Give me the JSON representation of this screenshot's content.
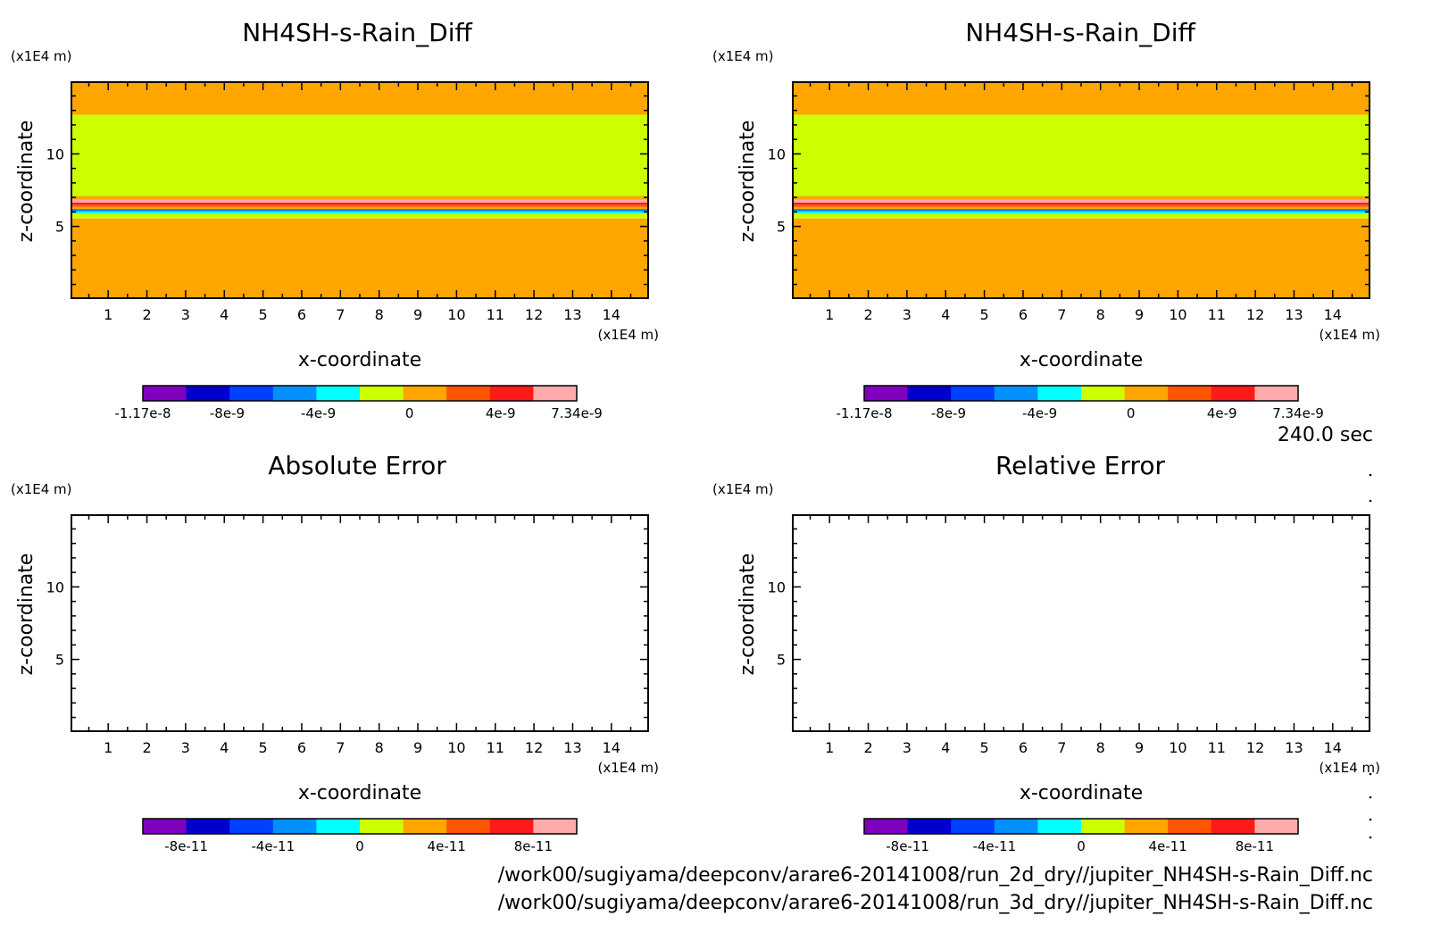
{
  "figure": {
    "time_label": "240.0 sec",
    "paths": [
      "/work00/sugiyama/deepconv/arare6-20141008/run_2d_dry//jupiter_NH4SH-s-Rain_Diff.nc",
      "/work00/sugiyama/deepconv/arare6-20141008/run_3d_dry//jupiter_NH4SH-s-Rain_Diff.nc"
    ],
    "panels": [
      {
        "title": "NH4SH-s-Rain_Diff"
      },
      {
        "title": "NH4SH-s-Rain_Diff"
      },
      {
        "title": "Absolute Error"
      },
      {
        "title": "Relative Error"
      }
    ]
  },
  "chart_data": [
    {
      "type": "heatmap",
      "title": "NH4SH-s-Rain_Diff",
      "xlabel": "x-coordinate",
      "ylabel": "z-coordinate",
      "x_unit": "(x1E4 m)",
      "y_unit": "(x1E4 m)",
      "xlim": [
        0.05,
        14.95
      ],
      "ylim": [
        0.05,
        14.95
      ],
      "x_ticks": [
        1,
        2,
        3,
        4,
        5,
        6,
        7,
        8,
        9,
        10,
        11,
        12,
        13,
        14
      ],
      "y_ticks": [
        5,
        10
      ],
      "bands": [
        {
          "z0": 0.05,
          "z1": 5.55,
          "color": "#ffa500"
        },
        {
          "z0": 5.55,
          "z1": 5.9,
          "color": "#ccff00"
        },
        {
          "z0": 5.9,
          "z1": 6.05,
          "color": "#00ffff"
        },
        {
          "z0": 6.05,
          "z1": 6.2,
          "color": "#0080ff"
        },
        {
          "z0": 6.2,
          "z1": 6.35,
          "color": "#ffa500"
        },
        {
          "z0": 6.35,
          "z1": 6.5,
          "color": "#ff5500"
        },
        {
          "z0": 6.5,
          "z1": 6.65,
          "color": "#ff1a1a"
        },
        {
          "z0": 6.65,
          "z1": 6.85,
          "color": "#ffaaaa"
        },
        {
          "z0": 6.85,
          "z1": 7.1,
          "color": "#ffa500"
        },
        {
          "z0": 7.1,
          "z1": 12.7,
          "color": "#ccff00"
        },
        {
          "z0": 12.7,
          "z1": 14.95,
          "color": "#ffa500"
        }
      ],
      "colorbar": {
        "colors": [
          "#8000c0",
          "#0000cc",
          "#0040ff",
          "#0090ff",
          "#00ffff",
          "#ccff00",
          "#ffa500",
          "#ff5500",
          "#ff1a1a",
          "#ffaaaa"
        ],
        "labels": [
          "-1.17e-8",
          "-8e-9",
          "-4e-9",
          "0",
          "4e-9",
          "7.34e-9"
        ],
        "label_values": [
          -1.17e-08,
          -8e-09,
          -4e-09,
          0,
          4e-09,
          7.34e-09
        ],
        "range": [
          -1.17e-08,
          7.34e-09
        ]
      }
    },
    {
      "type": "heatmap",
      "title": "NH4SH-s-Rain_Diff",
      "xlabel": "x-coordinate",
      "ylabel": "z-coordinate",
      "x_unit": "(x1E4 m)",
      "y_unit": "(x1E4 m)",
      "xlim": [
        0.05,
        14.95
      ],
      "ylim": [
        0.05,
        14.95
      ],
      "x_ticks": [
        1,
        2,
        3,
        4,
        5,
        6,
        7,
        8,
        9,
        10,
        11,
        12,
        13,
        14
      ],
      "y_ticks": [
        5,
        10
      ],
      "bands": [
        {
          "z0": 0.05,
          "z1": 5.55,
          "color": "#ffa500"
        },
        {
          "z0": 5.55,
          "z1": 5.9,
          "color": "#ccff00"
        },
        {
          "z0": 5.9,
          "z1": 6.05,
          "color": "#00ffff"
        },
        {
          "z0": 6.05,
          "z1": 6.2,
          "color": "#0080ff"
        },
        {
          "z0": 6.2,
          "z1": 6.35,
          "color": "#ffa500"
        },
        {
          "z0": 6.35,
          "z1": 6.5,
          "color": "#ff5500"
        },
        {
          "z0": 6.5,
          "z1": 6.65,
          "color": "#ff1a1a"
        },
        {
          "z0": 6.65,
          "z1": 6.85,
          "color": "#ffaaaa"
        },
        {
          "z0": 6.85,
          "z1": 7.1,
          "color": "#ffa500"
        },
        {
          "z0": 7.1,
          "z1": 12.7,
          "color": "#ccff00"
        },
        {
          "z0": 12.7,
          "z1": 14.95,
          "color": "#ffa500"
        }
      ],
      "colorbar": {
        "colors": [
          "#8000c0",
          "#0000cc",
          "#0040ff",
          "#0090ff",
          "#00ffff",
          "#ccff00",
          "#ffa500",
          "#ff5500",
          "#ff1a1a",
          "#ffaaaa"
        ],
        "labels": [
          "-1.17e-8",
          "-8e-9",
          "-4e-9",
          "0",
          "4e-9",
          "7.34e-9"
        ],
        "label_values": [
          -1.17e-08,
          -8e-09,
          -4e-09,
          0,
          4e-09,
          7.34e-09
        ],
        "range": [
          -1.17e-08,
          7.34e-09
        ]
      }
    },
    {
      "type": "heatmap",
      "title": "Absolute Error",
      "xlabel": "x-coordinate",
      "ylabel": "z-coordinate",
      "x_unit": "(x1E4 m)",
      "y_unit": "(x1E4 m)",
      "xlim": [
        0.05,
        14.95
      ],
      "ylim": [
        0.05,
        14.95
      ],
      "x_ticks": [
        1,
        2,
        3,
        4,
        5,
        6,
        7,
        8,
        9,
        10,
        11,
        12,
        13,
        14
      ],
      "y_ticks": [
        5,
        10
      ],
      "bands": [],
      "colorbar": {
        "colors": [
          "#8000c0",
          "#0000cc",
          "#0040ff",
          "#0090ff",
          "#00ffff",
          "#ccff00",
          "#ffa500",
          "#ff5500",
          "#ff1a1a",
          "#ffaaaa"
        ],
        "labels": [
          "-8e-11",
          "-4e-11",
          "0",
          "4e-11",
          "8e-11"
        ],
        "label_values": [
          -8e-11,
          -4e-11,
          0,
          4e-11,
          8e-11
        ],
        "range": [
          -1e-10,
          1e-10
        ]
      }
    },
    {
      "type": "heatmap",
      "title": "Relative Error",
      "xlabel": "x-coordinate",
      "ylabel": "z-coordinate",
      "x_unit": "(x1E4 m)",
      "y_unit": "(x1E4 m)",
      "xlim": [
        0.05,
        14.95
      ],
      "ylim": [
        0.05,
        14.95
      ],
      "x_ticks": [
        1,
        2,
        3,
        4,
        5,
        6,
        7,
        8,
        9,
        10,
        11,
        12,
        13,
        14
      ],
      "y_ticks": [
        5,
        10
      ],
      "bands": [],
      "colorbar": {
        "colors": [
          "#8000c0",
          "#0000cc",
          "#0040ff",
          "#0090ff",
          "#00ffff",
          "#ccff00",
          "#ffa500",
          "#ff5500",
          "#ff1a1a",
          "#ffaaaa"
        ],
        "labels": [
          "-8e-11",
          "-4e-11",
          "0",
          "4e-11",
          "8e-11"
        ],
        "label_values": [
          -8e-11,
          -4e-11,
          0,
          4e-11,
          8e-11
        ],
        "range": [
          -1e-10,
          1e-10
        ]
      }
    }
  ]
}
